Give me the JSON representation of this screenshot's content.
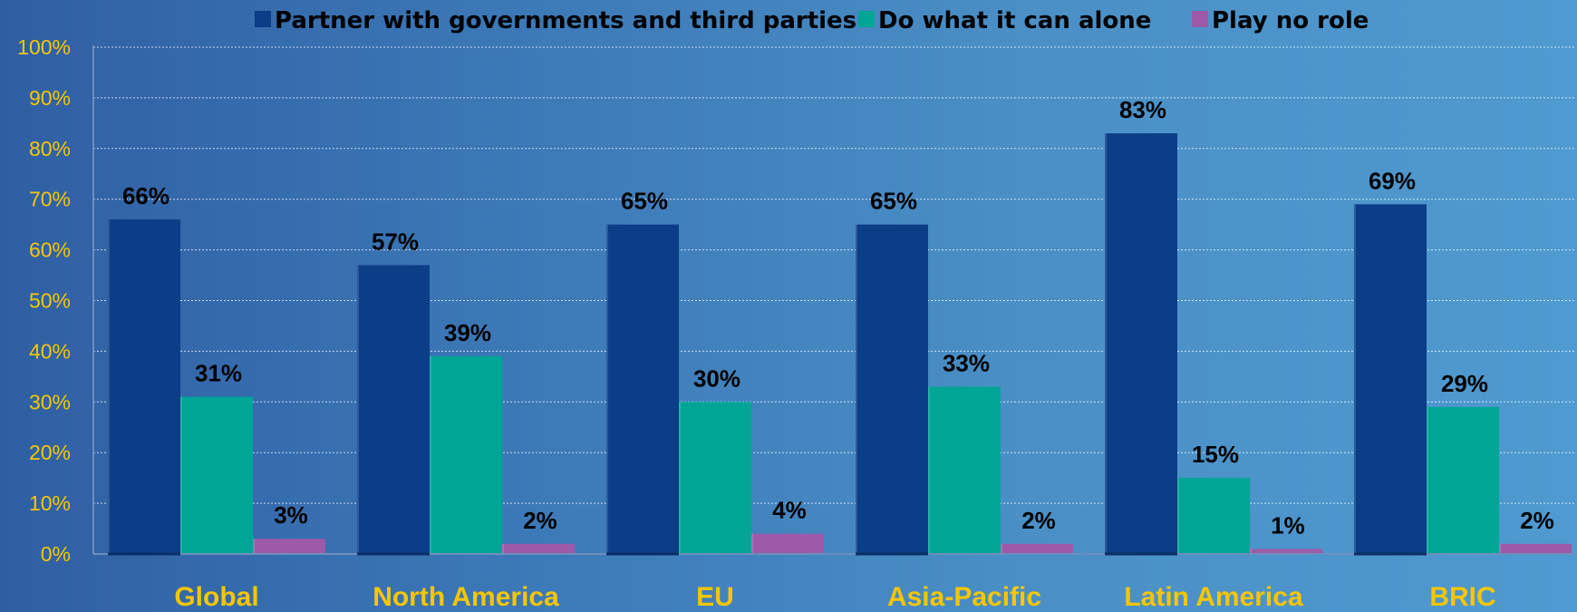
{
  "chart_data": {
    "type": "bar",
    "categories": [
      "Global",
      "North America",
      "EU",
      "Asia-Pacific",
      "Latin America",
      "BRIC"
    ],
    "series": [
      {
        "name": "Partner with governments and third parties",
        "color": "#0b3e86",
        "values": [
          66,
          57,
          65,
          65,
          83,
          69
        ],
        "labels": [
          "66%",
          "57%",
          "65%",
          "65%",
          "83%",
          "69%"
        ]
      },
      {
        "name": "Do what it can alone",
        "color": "#00a596",
        "values": [
          31,
          39,
          30,
          33,
          15,
          29
        ],
        "labels": [
          "31%",
          "39%",
          "30%",
          "33%",
          "15%",
          "29%"
        ]
      },
      {
        "name": "Play no role",
        "color": "#9c5aa8",
        "values": [
          3,
          2,
          4,
          2,
          1,
          2
        ],
        "labels": [
          "3%",
          "2%",
          "4%",
          "2%",
          "1%",
          "2%"
        ]
      }
    ],
    "yticks": [
      "0%",
      "10%",
      "20%",
      "30%",
      "40%",
      "50%",
      "60%",
      "70%",
      "80%",
      "90%",
      "100%"
    ],
    "ylim": [
      0,
      100
    ],
    "grid": true,
    "legend_position": "top"
  }
}
